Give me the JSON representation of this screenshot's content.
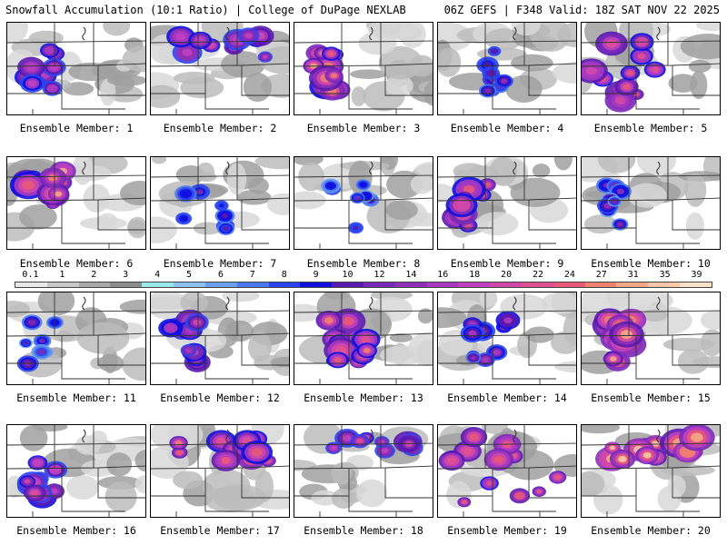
{
  "header": {
    "title": "Snowfall Accumulation (10:1 Ratio) | College of DuPage NEXLAB",
    "run_info": "06Z GEFS | F348 Valid: 18Z SAT NOV 22 2025"
  },
  "legend": {
    "ticks": [
      "0.1",
      "1",
      "2",
      "3",
      "4",
      "5",
      "6",
      "7",
      "8",
      "9",
      "10",
      "12",
      "14",
      "16",
      "18",
      "20",
      "22",
      "24",
      "27",
      "31",
      "35",
      "39"
    ],
    "colors": [
      "#e8e8e8",
      "#c8c8c8",
      "#a8a8a8",
      "#8c8c8c",
      "#9ae8e8",
      "#8cc0f0",
      "#6a9ef0",
      "#4a78f0",
      "#2a44f0",
      "#1010e0",
      "#5a1ab0",
      "#7a2ab8",
      "#9030b8",
      "#a838c0",
      "#c040c0",
      "#d048a8",
      "#e05090",
      "#e85878",
      "#f08070",
      "#f4a888",
      "#f8c8a8",
      "#fce0c8"
    ]
  },
  "members": [
    {
      "label": "Ensemble Member: 1",
      "intensity": 0.55,
      "seed": 11,
      "focus": "west"
    },
    {
      "label": "Ensemble Member: 2",
      "intensity": 0.6,
      "seed": 23,
      "focus": "north"
    },
    {
      "label": "Ensemble Member: 3",
      "intensity": 0.8,
      "seed": 37,
      "focus": "west"
    },
    {
      "label": "Ensemble Member: 4",
      "intensity": 0.35,
      "seed": 41,
      "focus": "center"
    },
    {
      "label": "Ensemble Member: 5",
      "intensity": 0.7,
      "seed": 53,
      "focus": "spread"
    },
    {
      "label": "Ensemble Member: 6",
      "intensity": 0.8,
      "seed": 67,
      "focus": "northwest"
    },
    {
      "label": "Ensemble Member: 7",
      "intensity": 0.3,
      "seed": 71,
      "focus": "center"
    },
    {
      "label": "Ensemble Member: 8",
      "intensity": 0.3,
      "seed": 83,
      "focus": "center"
    },
    {
      "label": "Ensemble Member: 9",
      "intensity": 0.7,
      "seed": 97,
      "focus": "west"
    },
    {
      "label": "Ensemble Member: 10",
      "intensity": 0.35,
      "seed": 101,
      "focus": "west"
    },
    {
      "label": "Ensemble Member: 11",
      "intensity": 0.3,
      "seed": 113,
      "focus": "west"
    },
    {
      "label": "Ensemble Member: 12",
      "intensity": 0.55,
      "seed": 127,
      "focus": "west"
    },
    {
      "label": "Ensemble Member: 13",
      "intensity": 0.75,
      "seed": 131,
      "focus": "center"
    },
    {
      "label": "Ensemble Member: 14",
      "intensity": 0.45,
      "seed": 149,
      "focus": "center"
    },
    {
      "label": "Ensemble Member: 15",
      "intensity": 0.85,
      "seed": 151,
      "focus": "west"
    },
    {
      "label": "Ensemble Member: 16",
      "intensity": 0.6,
      "seed": 163,
      "focus": "west"
    },
    {
      "label": "Ensemble Member: 17",
      "intensity": 0.75,
      "seed": 173,
      "focus": "north"
    },
    {
      "label": "Ensemble Member: 18",
      "intensity": 0.6,
      "seed": 181,
      "focus": "north"
    },
    {
      "label": "Ensemble Member: 19",
      "intensity": 0.75,
      "seed": 191,
      "focus": "spread"
    },
    {
      "label": "Ensemble Member: 20",
      "intensity": 0.9,
      "seed": 199,
      "focus": "north"
    }
  ]
}
